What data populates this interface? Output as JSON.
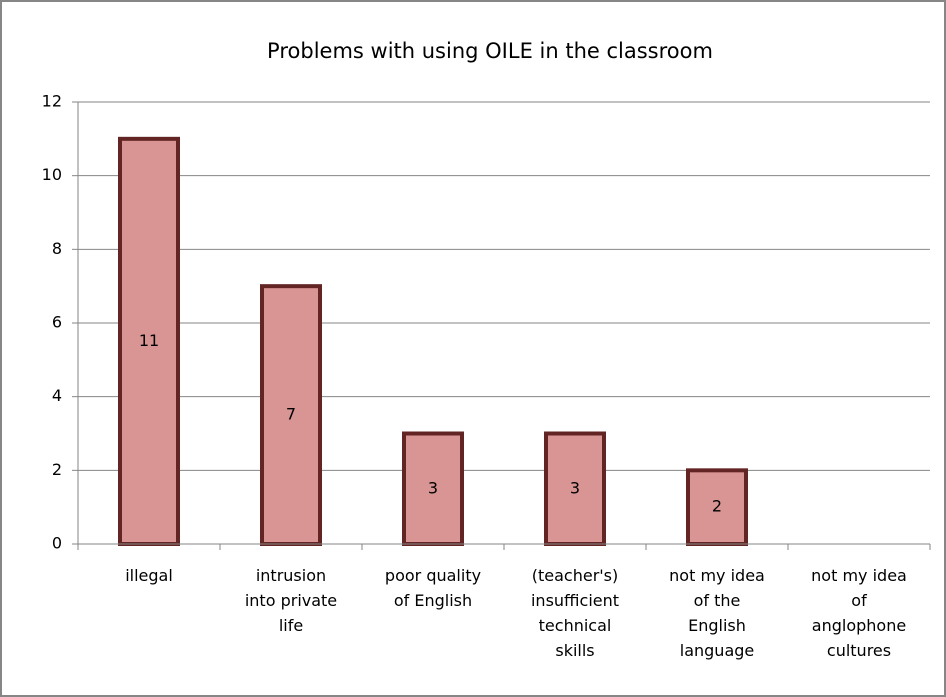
{
  "chart_data": {
    "type": "bar",
    "title": "Problems with using OILE in the classroom",
    "categories": [
      "illegal",
      "intrusion into private life",
      "poor quality of English",
      "(teacher's) insufficient technical skills",
      "not my idea of the English language",
      "not my idea of anglophone cultures"
    ],
    "values": [
      11,
      7,
      3,
      3,
      2,
      0
    ],
    "value_labels": [
      "11",
      "7",
      "3",
      "3",
      "2",
      null
    ],
    "color": "#d99594",
    "edge_color": "#632523",
    "ylim": [
      0,
      12
    ],
    "yticks": [
      0,
      2,
      4,
      6,
      8,
      10,
      12
    ],
    "grid": true
  }
}
